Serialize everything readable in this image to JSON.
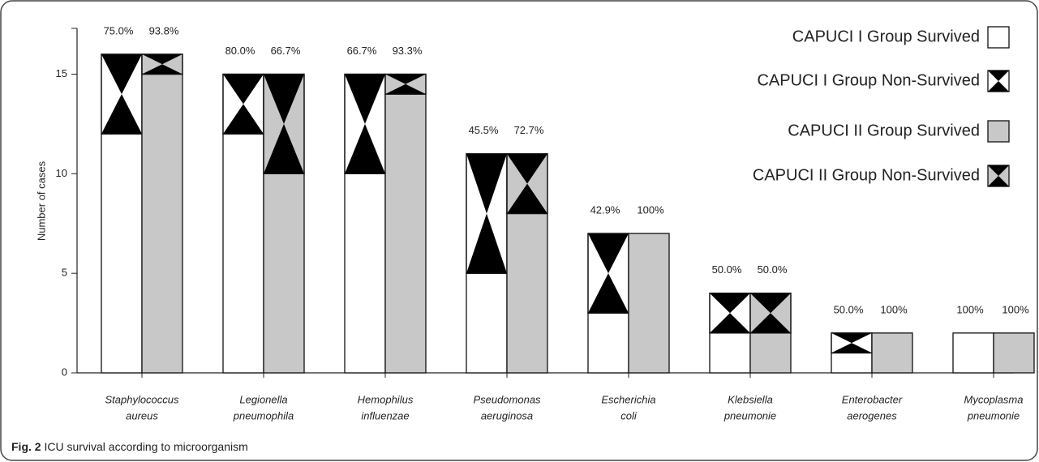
{
  "chart_data": {
    "type": "grouped_stacked_bar",
    "y_label": "Number of cases",
    "caption_label": "Fig. 2",
    "caption": "ICU survival according to microorganism",
    "categories": [
      [
        "Staphylococcus",
        "aureus"
      ],
      [
        "Legionella",
        "pneumophila"
      ],
      [
        "Hemophilus",
        "influenzae"
      ],
      [
        "Pseudomonas",
        "aeruginosa"
      ],
      [
        "Escherichia",
        "coli"
      ],
      [
        "Klebsiella",
        "pneumonie"
      ],
      [
        "Enterobacter",
        "aerogenes"
      ],
      [
        "Mycoplasma",
        "pneumonie"
      ]
    ],
    "series": [
      {
        "name": "CAPUCI I Group Survived",
        "group": 0,
        "color": "#ffffff",
        "pattern": null,
        "values": [
          12,
          12,
          10,
          5,
          3,
          2,
          1,
          2
        ]
      },
      {
        "name": "CAPUCI I Group Non-Survived",
        "group": 0,
        "color": "#ffffff",
        "pattern": "hourglass",
        "values": [
          4,
          3,
          5,
          6,
          4,
          2,
          1,
          0
        ]
      },
      {
        "name": "CAPUCI II Group Survived",
        "group": 1,
        "color": "#c8c8c8",
        "pattern": null,
        "values": [
          15,
          10,
          14,
          8,
          7,
          2,
          2,
          2
        ]
      },
      {
        "name": "CAPUCI II Group Non-Survived",
        "group": 1,
        "color": "#c8c8c8",
        "pattern": "hourglass",
        "values": [
          1,
          5,
          1,
          3,
          0,
          2,
          0,
          0
        ]
      }
    ],
    "survival_rates": [
      {
        "group": 0,
        "values": [
          75.0,
          80.0,
          66.7,
          45.5,
          42.9,
          50.0,
          50.0,
          100
        ],
        "value_labels": [
          "75.0%",
          "80.0%",
          "66.7%",
          "45.5%",
          "42.9%",
          "50.0%",
          "50.0%",
          "100%"
        ]
      },
      {
        "group": 1,
        "values": [
          93.8,
          66.7,
          93.3,
          72.7,
          100,
          50.0,
          100,
          100
        ],
        "value_labels": [
          "93.8%",
          "66.7%",
          "93.3%",
          "72.7%",
          "100%",
          "50.0%",
          "100%",
          "100%"
        ]
      }
    ],
    "ylim": [
      0,
      17.3
    ],
    "yticks": [
      0,
      5,
      10,
      15
    ]
  }
}
